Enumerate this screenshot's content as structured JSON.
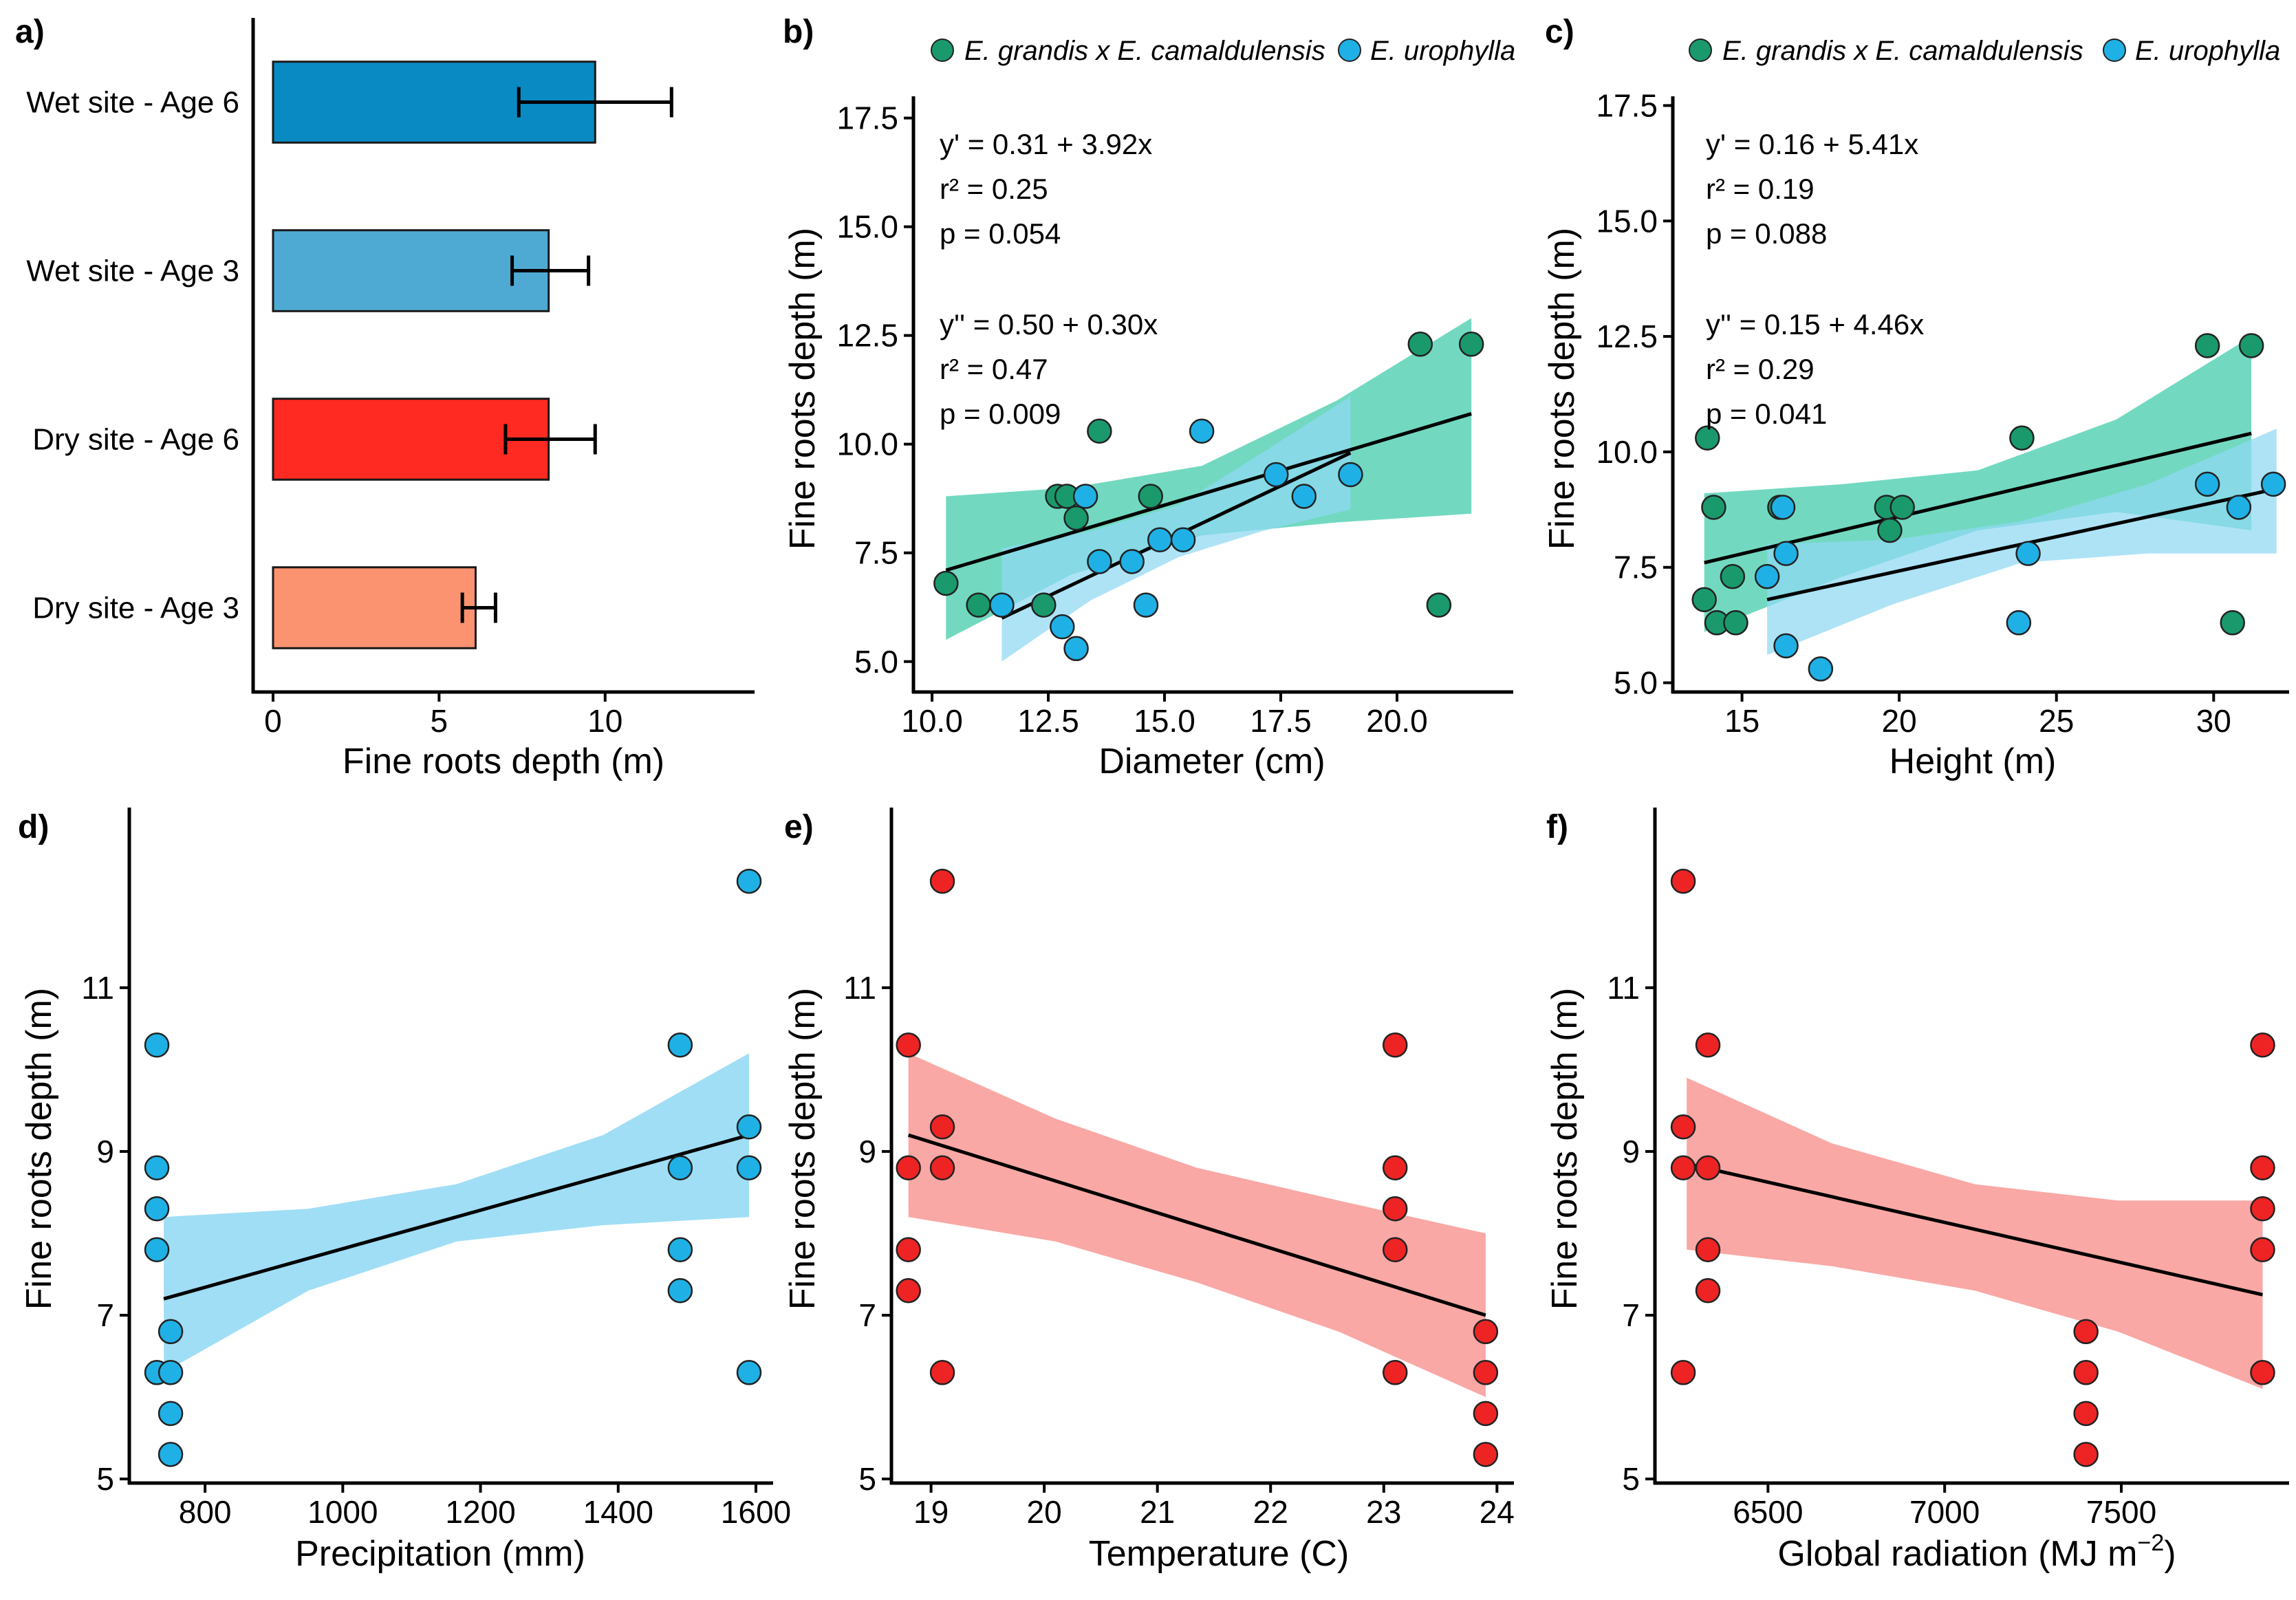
{
  "colors": {
    "green": "#1a9a6c",
    "blue": "#1fb1e6",
    "red": "#ee2424",
    "green_ribbon": "#4fcfb0",
    "blue_ribbon": "#8fd8f3",
    "red_ribbon": "#f8928f",
    "bar_wet6": "#0a8ac2",
    "bar_wet3": "#4faad3",
    "bar_dry6": "#ff2a22",
    "bar_dry3": "#fb9270"
  },
  "legend": {
    "g": "E. grandis x E. camaldulensis",
    "u": "E. urophylla"
  },
  "chart_data": [
    {
      "id": "a",
      "panel_label": "a)",
      "type": "bar",
      "orientation": "horizontal",
      "categories": [
        "Wet site - Age 6",
        "Wet site - Age 3",
        "Dry site - Age 6",
        "Dry site - Age 3"
      ],
      "values": [
        9.7,
        8.3,
        8.3,
        6.1
      ],
      "error_low": [
        7.4,
        7.2,
        7.0,
        5.7
      ],
      "error_high": [
        12.0,
        9.5,
        9.7,
        6.7
      ],
      "xlabel": "Fine roots depth (m)",
      "xlim": [
        -0.6,
        14.5
      ],
      "xticks": [
        0,
        5,
        10
      ]
    },
    {
      "id": "b",
      "panel_label": "b)",
      "type": "scatter",
      "xlabel": "Diameter (cm)",
      "ylabel": "Fine roots depth (m)",
      "xlim": [
        9.6,
        22.5
      ],
      "ylim": [
        4.3,
        18.0
      ],
      "xticks": [
        "10.0",
        "12.5",
        "15.0",
        "17.5",
        "20.0"
      ],
      "yticks": [
        "5.0",
        "7.5",
        "10.0",
        "12.5",
        "15.0",
        "17.5"
      ],
      "series": [
        {
          "name": "E. grandis x E. camaldulensis",
          "x": [
            10.3,
            11.0,
            12.4,
            12.7,
            12.9,
            13.1,
            13.6,
            14.7,
            20.5,
            20.9,
            21.6
          ],
          "y": [
            6.8,
            6.3,
            6.3,
            8.8,
            8.8,
            8.3,
            10.3,
            8.8,
            12.3,
            6.3,
            12.3
          ],
          "fit": {
            "x": [
              10.3,
              21.6
            ],
            "y": [
              7.1,
              10.7
            ]
          },
          "ribbon": {
            "x": [
              10.3,
              13.0,
              15.8,
              18.7,
              21.6
            ],
            "lower": [
              5.5,
              7.0,
              7.9,
              8.2,
              8.4
            ],
            "upper": [
              8.8,
              9.0,
              9.5,
              11.0,
              12.9
            ]
          }
        },
        {
          "name": "E. urophylla",
          "x": [
            11.5,
            12.8,
            13.1,
            13.3,
            13.6,
            14.3,
            14.6,
            14.9,
            15.4,
            15.8,
            17.4,
            18.0,
            19.0
          ],
          "y": [
            6.3,
            5.8,
            5.3,
            8.8,
            7.3,
            7.3,
            6.3,
            7.8,
            7.8,
            10.3,
            9.3,
            8.8,
            9.3
          ],
          "fit": {
            "x": [
              11.5,
              19.0
            ],
            "y": [
              6.0,
              9.8
            ]
          },
          "ribbon": {
            "x": [
              11.5,
              13.4,
              15.3,
              17.1,
              19.0
            ],
            "lower": [
              5.0,
              6.4,
              7.4,
              8.0,
              8.5
            ],
            "upper": [
              7.6,
              8.0,
              8.6,
              9.8,
              11.1
            ]
          }
        }
      ],
      "annotations": [
        "y' = 0.31 + 3.92x",
        "r² = 0.25",
        "p = 0.054",
        "y'' = 0.50 + 0.30x",
        "r² = 0.47",
        "p = 0.009"
      ]
    },
    {
      "id": "c",
      "panel_label": "c)",
      "type": "scatter",
      "xlabel": "Height (m)",
      "ylabel": "Fine roots depth (m)",
      "xlim": [
        12.8,
        32.4
      ],
      "ylim": [
        4.8,
        17.7
      ],
      "xticks": [
        "15",
        "20",
        "25",
        "30"
      ],
      "yticks": [
        "5.0",
        "7.5",
        "10.0",
        "12.5",
        "15.0",
        "17.5"
      ],
      "series": [
        {
          "name": "E. grandis x E. camaldulensis",
          "x": [
            13.8,
            13.9,
            14.1,
            14.2,
            14.7,
            14.8,
            16.2,
            19.6,
            19.7,
            20.1,
            23.9,
            29.8,
            30.6,
            31.2
          ],
          "y": [
            6.8,
            10.3,
            8.8,
            6.3,
            7.3,
            6.3,
            8.8,
            8.8,
            8.3,
            8.8,
            10.3,
            12.3,
            6.3,
            12.3
          ],
          "fit": {
            "x": [
              13.8,
              31.2
            ],
            "y": [
              7.6,
              10.4
            ]
          },
          "ribbon": {
            "x": [
              13.8,
              18.2,
              22.5,
              26.9,
              31.2
            ],
            "lower": [
              6.1,
              7.3,
              8.3,
              8.7,
              8.3
            ],
            "upper": [
              9.1,
              9.3,
              9.6,
              10.7,
              12.5
            ]
          }
        },
        {
          "name": "E. urophylla",
          "x": [
            15.8,
            16.3,
            16.4,
            16.4,
            17.5,
            23.8,
            24.1,
            29.8,
            30.8,
            31.9
          ],
          "y": [
            7.3,
            8.8,
            7.8,
            5.8,
            5.3,
            6.3,
            7.8,
            9.3,
            8.8,
            9.3
          ],
          "fit": {
            "x": [
              15.8,
              32.0
            ],
            "y": [
              6.8,
              9.2
            ]
          },
          "ribbon": {
            "x": [
              15.8,
              19.8,
              23.9,
              27.9,
              32.0
            ],
            "lower": [
              5.6,
              6.7,
              7.6,
              7.8,
              7.8
            ],
            "upper": [
              8.0,
              8.1,
              8.5,
              9.3,
              10.5
            ]
          }
        }
      ],
      "annotations": [
        "y' = 0.16 + 5.41x",
        "r² = 0.19",
        "p = 0.088",
        "y'' = 0.15 + 4.46x",
        "r² = 0.29",
        "p = 0.041"
      ]
    },
    {
      "id": "d",
      "panel_label": "d)",
      "type": "scatter",
      "xlabel": "Precipitation (mm)",
      "ylabel": "Fine roots depth (m)",
      "xlim": [
        690,
        1625
      ],
      "ylim": [
        4.95,
        13.2
      ],
      "xticks": [
        "800",
        "1000",
        "1200",
        "1400",
        "1600"
      ],
      "yticks": [
        "5",
        "7",
        "9",
        "11"
      ],
      "series": [
        {
          "name": "",
          "x": [
            730,
            730,
            730,
            730,
            730,
            750,
            750,
            750,
            750,
            1490,
            1490,
            1490,
            1490,
            1590,
            1590,
            1590,
            1590
          ],
          "y": [
            10.3,
            8.8,
            8.3,
            7.8,
            6.3,
            6.8,
            6.3,
            5.8,
            5.3,
            10.3,
            8.8,
            7.8,
            7.3,
            12.3,
            9.3,
            8.8,
            6.3
          ],
          "fit": {
            "x": [
              740,
              1590
            ],
            "y": [
              7.2,
              9.2
            ]
          },
          "ribbon": {
            "x": [
              740,
              950,
              1165,
              1378,
              1590
            ],
            "lower": [
              6.3,
              7.3,
              7.9,
              8.1,
              8.2
            ],
            "upper": [
              8.2,
              8.3,
              8.6,
              9.2,
              10.2
            ]
          }
        }
      ]
    },
    {
      "id": "e",
      "panel_label": "e)",
      "type": "scatter",
      "xlabel": "Temperature (C)",
      "ylabel": "Fine roots depth (m)",
      "xlim": [
        18.65,
        24.15
      ],
      "ylim": [
        4.95,
        13.2
      ],
      "xticks": [
        "19",
        "20",
        "21",
        "22",
        "23",
        "24"
      ],
      "yticks": [
        "5",
        "7",
        "9",
        "11"
      ],
      "series": [
        {
          "name": "",
          "x": [
            18.8,
            18.8,
            18.8,
            18.8,
            19.1,
            19.1,
            19.1,
            19.1,
            23.1,
            23.1,
            23.1,
            23.1,
            23.1,
            23.9,
            23.9,
            23.9,
            23.9
          ],
          "y": [
            10.3,
            8.8,
            7.8,
            7.3,
            12.3,
            9.3,
            8.8,
            6.3,
            10.3,
            8.8,
            8.3,
            7.8,
            6.3,
            6.8,
            6.3,
            5.8,
            5.3
          ],
          "fit": {
            "x": [
              18.8,
              23.9
            ],
            "y": [
              9.2,
              7.0
            ]
          },
          "ribbon": {
            "x": [
              18.8,
              20.1,
              21.35,
              22.6,
              23.9
            ],
            "lower": [
              8.2,
              7.9,
              7.4,
              6.8,
              6.0
            ],
            "upper": [
              10.2,
              9.4,
              8.8,
              8.4,
              8.0
            ]
          }
        }
      ]
    },
    {
      "id": "f",
      "panel_label": "f)",
      "type": "scatter",
      "xlabel": "Global radiation (MJ m",
      "xlabel_sup": "−2",
      "xlabel_end": ")",
      "ylabel": "Fine roots depth (m)",
      "xlim": [
        6180,
        7975
      ],
      "ylim": [
        4.95,
        13.2
      ],
      "xticks": [
        "6500",
        "7000",
        "7500"
      ],
      "yticks": [
        "5",
        "7",
        "9",
        "11"
      ],
      "series": [
        {
          "name": "",
          "x": [
            6260,
            6260,
            6260,
            6260,
            6330,
            6330,
            6330,
            6330,
            7400,
            7400,
            7400,
            7400,
            7900,
            7900,
            7900,
            7900,
            7900
          ],
          "y": [
            12.3,
            9.3,
            8.8,
            6.3,
            10.3,
            8.8,
            7.8,
            7.3,
            6.8,
            6.3,
            5.8,
            5.3,
            10.3,
            8.8,
            8.3,
            7.8,
            6.3
          ],
          "fit": {
            "x": [
              6270,
              7900
            ],
            "y": [
              8.85,
              7.25
            ]
          },
          "ribbon": {
            "x": [
              6270,
              6680,
              7085,
              7490,
              7900
            ],
            "lower": [
              7.8,
              7.6,
              7.3,
              6.8,
              6.1
            ],
            "upper": [
              9.9,
              9.1,
              8.6,
              8.4,
              8.4
            ]
          }
        }
      ]
    }
  ]
}
